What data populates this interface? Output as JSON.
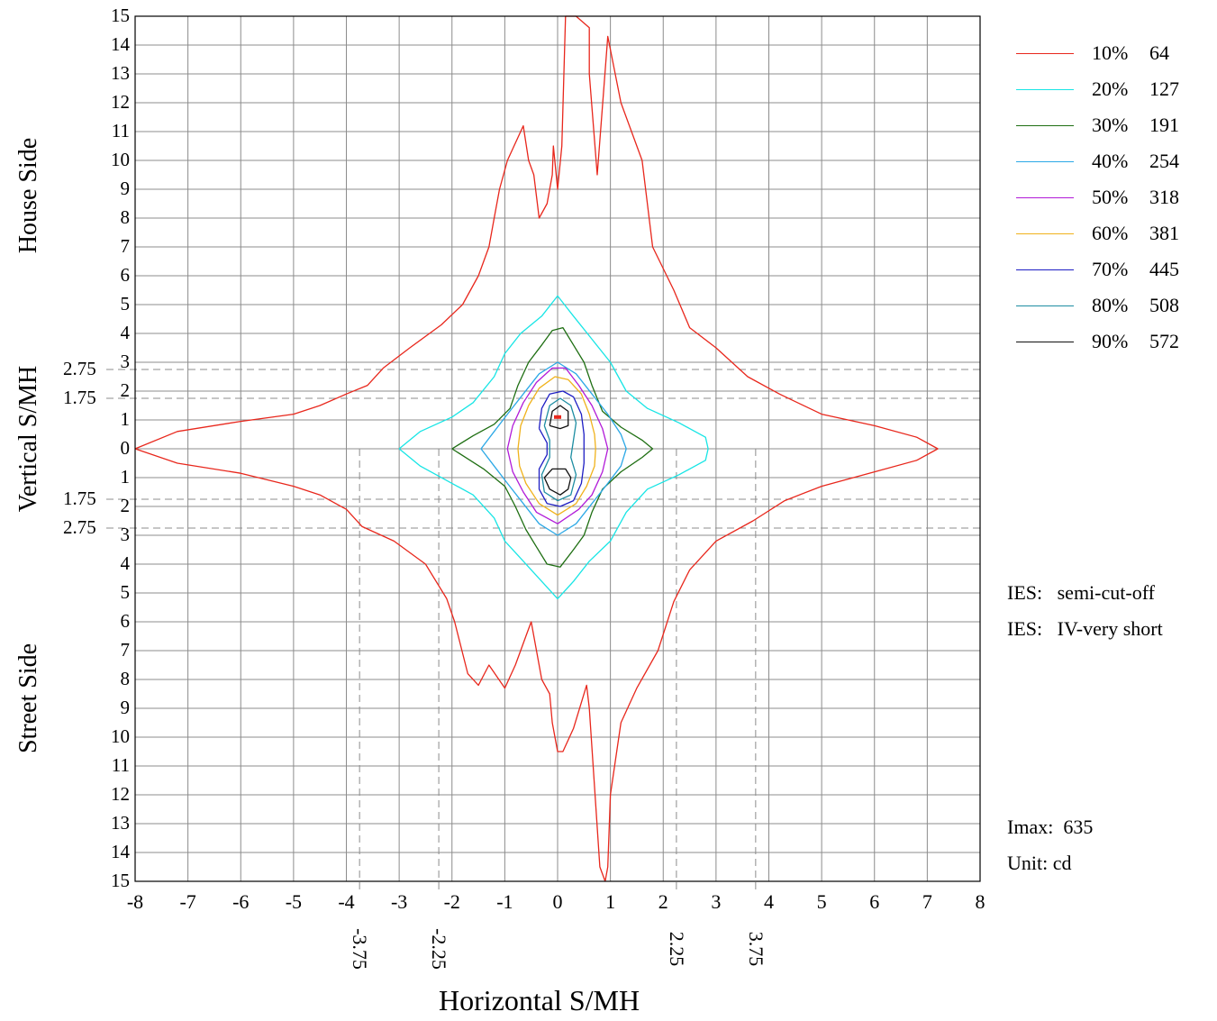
{
  "chart_data": {
    "type": "contour",
    "xlabel": "Horizontal S/MH",
    "ylabel": "Vertical S/MH",
    "side_labels": {
      "top": "House Side",
      "bottom": "Street Side"
    },
    "xlim": [
      -8,
      8
    ],
    "ylim": [
      -15,
      15
    ],
    "x_ticks": [
      "-8",
      "-7",
      "-6",
      "-5",
      "-4",
      "-3",
      "-2",
      "-1",
      "0",
      "1",
      "2",
      "3",
      "4",
      "5",
      "6",
      "7",
      "8"
    ],
    "y_ticks": [
      "15",
      "14",
      "13",
      "12",
      "11",
      "10",
      "9",
      "8",
      "7",
      "6",
      "5",
      "4",
      "3",
      "2",
      "1",
      "0",
      "1",
      "2",
      "3",
      "4",
      "5",
      "6",
      "7",
      "8",
      "9",
      "10",
      "11",
      "12",
      "13",
      "14",
      "15"
    ],
    "ref_lines": {
      "vertical": [
        {
          "x": -3.75,
          "label": "-3.75"
        },
        {
          "x": -2.25,
          "label": "-2.25"
        },
        {
          "x": 2.25,
          "label": "2.25"
        },
        {
          "x": 3.75,
          "label": "3.75"
        }
      ],
      "horizontal": [
        {
          "y": 2.75,
          "label": "2.75"
        },
        {
          "y": 1.75,
          "label": "1.75"
        },
        {
          "y": -1.75,
          "label": "1.75"
        },
        {
          "y": -2.75,
          "label": "2.75"
        }
      ]
    },
    "legend": [
      {
        "pct": "10%",
        "value": "64",
        "color": "#e8271c"
      },
      {
        "pct": "20%",
        "value": "127",
        "color": "#17e5e5"
      },
      {
        "pct": "30%",
        "value": "191",
        "color": "#1e6e12"
      },
      {
        "pct": "40%",
        "value": "254",
        "color": "#2ba8e6"
      },
      {
        "pct": "50%",
        "value": "318",
        "color": "#b11ad8"
      },
      {
        "pct": "60%",
        "value": "381",
        "color": "#f0b21b"
      },
      {
        "pct": "70%",
        "value": "445",
        "color": "#1e1ec4"
      },
      {
        "pct": "80%",
        "value": "508",
        "color": "#1d8da2"
      },
      {
        "pct": "90%",
        "value": "572",
        "color": "#111111"
      }
    ],
    "contours": [
      {
        "level": "10%",
        "points": [
          [
            -8.0,
            0
          ],
          [
            -7.2,
            0.6
          ],
          [
            -6.0,
            0.95
          ],
          [
            -5.0,
            1.2
          ],
          [
            -4.5,
            1.5
          ],
          [
            -4.0,
            1.9
          ],
          [
            -3.6,
            2.2
          ],
          [
            -3.3,
            2.8
          ],
          [
            -2.8,
            3.5
          ],
          [
            -2.2,
            4.3
          ],
          [
            -1.8,
            5.0
          ],
          [
            -1.5,
            6.0
          ],
          [
            -1.3,
            7.0
          ],
          [
            -1.2,
            8.0
          ],
          [
            -1.1,
            9.0
          ],
          [
            -0.95,
            10.0
          ],
          [
            -0.65,
            11.2
          ],
          [
            -0.55,
            10.0
          ],
          [
            -0.45,
            9.5
          ],
          [
            -0.35,
            8.0
          ],
          [
            -0.2,
            8.5
          ],
          [
            -0.1,
            9.5
          ],
          [
            -0.08,
            10.5
          ],
          [
            0.0,
            9.0
          ],
          [
            0.08,
            10.5
          ],
          [
            0.15,
            15.0
          ],
          [
            0.35,
            15.0
          ],
          [
            0.6,
            14.6
          ],
          [
            0.6,
            13.0
          ],
          [
            0.75,
            9.5
          ],
          [
            0.95,
            14.3
          ],
          [
            1.2,
            12.0
          ],
          [
            1.6,
            10.0
          ],
          [
            1.8,
            7.0
          ],
          [
            2.2,
            5.5
          ],
          [
            2.5,
            4.2
          ],
          [
            3.0,
            3.5
          ],
          [
            3.6,
            2.5
          ],
          [
            4.2,
            1.9
          ],
          [
            5.0,
            1.2
          ],
          [
            6.0,
            0.8
          ],
          [
            6.8,
            0.4
          ],
          [
            7.2,
            0.0
          ],
          [
            6.8,
            -0.4
          ],
          [
            6.0,
            -0.8
          ],
          [
            5.0,
            -1.3
          ],
          [
            4.3,
            -1.8
          ],
          [
            3.7,
            -2.5
          ],
          [
            3.0,
            -3.2
          ],
          [
            2.5,
            -4.2
          ],
          [
            2.2,
            -5.3
          ],
          [
            1.9,
            -7.0
          ],
          [
            1.5,
            -8.3
          ],
          [
            1.2,
            -9.5
          ],
          [
            1.0,
            -12.0
          ],
          [
            0.95,
            -14.5
          ],
          [
            0.9,
            -15.0
          ],
          [
            0.8,
            -14.5
          ],
          [
            0.6,
            -9.0
          ],
          [
            0.55,
            -8.2
          ],
          [
            0.3,
            -9.7
          ],
          [
            0.1,
            -10.5
          ],
          [
            0.0,
            -10.5
          ],
          [
            -0.1,
            -9.5
          ],
          [
            -0.15,
            -8.5
          ],
          [
            -0.3,
            -8.0
          ],
          [
            -0.5,
            -6.0
          ],
          [
            -0.6,
            -6.5
          ],
          [
            -0.8,
            -7.5
          ],
          [
            -1.0,
            -8.3
          ],
          [
            -1.3,
            -7.5
          ],
          [
            -1.5,
            -8.2
          ],
          [
            -1.7,
            -7.8
          ],
          [
            -1.95,
            -6.0
          ],
          [
            -2.1,
            -5.2
          ],
          [
            -2.5,
            -4.0
          ],
          [
            -3.1,
            -3.2
          ],
          [
            -3.7,
            -2.7
          ],
          [
            -4.0,
            -2.1
          ],
          [
            -4.5,
            -1.6
          ],
          [
            -5.0,
            -1.3
          ],
          [
            -6.0,
            -0.85
          ],
          [
            -7.2,
            -0.5
          ],
          [
            -8.0,
            0
          ]
        ]
      },
      {
        "level": "20%",
        "points": [
          [
            -3.0,
            0
          ],
          [
            -2.6,
            0.6
          ],
          [
            -2.0,
            1.1
          ],
          [
            -1.6,
            1.6
          ],
          [
            -1.2,
            2.5
          ],
          [
            -1.0,
            3.3
          ],
          [
            -0.7,
            4.0
          ],
          [
            -0.3,
            4.6
          ],
          [
            0.0,
            5.3
          ],
          [
            0.3,
            4.6
          ],
          [
            0.65,
            3.8
          ],
          [
            1.0,
            3.0
          ],
          [
            1.3,
            2.0
          ],
          [
            1.7,
            1.4
          ],
          [
            2.3,
            0.9
          ],
          [
            2.8,
            0.4
          ],
          [
            2.85,
            0
          ],
          [
            2.8,
            -0.4
          ],
          [
            2.3,
            -0.9
          ],
          [
            1.7,
            -1.4
          ],
          [
            1.3,
            -2.2
          ],
          [
            1.0,
            -3.2
          ],
          [
            0.6,
            -3.9
          ],
          [
            0.3,
            -4.6
          ],
          [
            0.0,
            -5.2
          ],
          [
            -0.3,
            -4.6
          ],
          [
            -0.7,
            -3.8
          ],
          [
            -1.0,
            -3.2
          ],
          [
            -1.2,
            -2.4
          ],
          [
            -1.6,
            -1.6
          ],
          [
            -2.0,
            -1.2
          ],
          [
            -2.6,
            -0.6
          ],
          [
            -3.0,
            0
          ]
        ]
      },
      {
        "level": "30%",
        "points": [
          [
            -2.0,
            0
          ],
          [
            -1.6,
            0.45
          ],
          [
            -1.2,
            0.85
          ],
          [
            -0.9,
            1.4
          ],
          [
            -0.75,
            2.2
          ],
          [
            -0.55,
            3.0
          ],
          [
            -0.3,
            3.6
          ],
          [
            -0.1,
            4.1
          ],
          [
            0.1,
            4.2
          ],
          [
            0.3,
            3.6
          ],
          [
            0.5,
            3.0
          ],
          [
            0.65,
            2.2
          ],
          [
            0.85,
            1.3
          ],
          [
            1.2,
            0.75
          ],
          [
            1.6,
            0.3
          ],
          [
            1.8,
            0
          ],
          [
            1.6,
            -0.3
          ],
          [
            1.2,
            -0.8
          ],
          [
            0.85,
            -1.4
          ],
          [
            0.65,
            -2.2
          ],
          [
            0.5,
            -3.0
          ],
          [
            0.3,
            -3.5
          ],
          [
            0.05,
            -4.1
          ],
          [
            -0.2,
            -4.0
          ],
          [
            -0.4,
            -3.4
          ],
          [
            -0.6,
            -2.8
          ],
          [
            -0.8,
            -2.0
          ],
          [
            -1.0,
            -1.3
          ],
          [
            -1.4,
            -0.7
          ],
          [
            -2.0,
            0
          ]
        ]
      },
      {
        "level": "40%",
        "points": [
          [
            -1.45,
            0
          ],
          [
            -1.2,
            0.6
          ],
          [
            -0.95,
            1.2
          ],
          [
            -0.65,
            1.9
          ],
          [
            -0.35,
            2.6
          ],
          [
            0.0,
            3.0
          ],
          [
            0.35,
            2.6
          ],
          [
            0.65,
            1.9
          ],
          [
            0.95,
            1.2
          ],
          [
            1.2,
            0.5
          ],
          [
            1.3,
            0
          ],
          [
            1.2,
            -0.6
          ],
          [
            0.95,
            -1.2
          ],
          [
            0.65,
            -1.9
          ],
          [
            0.35,
            -2.6
          ],
          [
            0.0,
            -3.0
          ],
          [
            -0.35,
            -2.6
          ],
          [
            -0.65,
            -1.9
          ],
          [
            -0.95,
            -1.2
          ],
          [
            -1.2,
            -0.6
          ],
          [
            -1.45,
            0
          ]
        ]
      },
      {
        "level": "50%",
        "points": [
          [
            -0.95,
            0
          ],
          [
            -0.85,
            0.8
          ],
          [
            -0.65,
            1.6
          ],
          [
            -0.4,
            2.3
          ],
          [
            -0.1,
            2.8
          ],
          [
            0.15,
            2.8
          ],
          [
            0.4,
            2.2
          ],
          [
            0.65,
            1.5
          ],
          [
            0.85,
            0.7
          ],
          [
            0.95,
            0
          ],
          [
            0.85,
            -0.8
          ],
          [
            0.65,
            -1.6
          ],
          [
            0.4,
            -2.1
          ],
          [
            0.0,
            -2.6
          ],
          [
            -0.4,
            -2.2
          ],
          [
            -0.65,
            -1.5
          ],
          [
            -0.85,
            -0.8
          ],
          [
            -0.95,
            0
          ]
        ]
      },
      {
        "level": "60%",
        "points": [
          [
            -0.75,
            0
          ],
          [
            -0.7,
            0.8
          ],
          [
            -0.55,
            1.5
          ],
          [
            -0.35,
            2.1
          ],
          [
            -0.05,
            2.5
          ],
          [
            0.2,
            2.4
          ],
          [
            0.45,
            1.9
          ],
          [
            0.6,
            1.2
          ],
          [
            0.7,
            0.5
          ],
          [
            0.72,
            0
          ],
          [
            0.7,
            -0.6
          ],
          [
            0.55,
            -1.3
          ],
          [
            0.35,
            -1.9
          ],
          [
            0.0,
            -2.3
          ],
          [
            -0.35,
            -1.9
          ],
          [
            -0.6,
            -1.2
          ],
          [
            -0.72,
            -0.6
          ],
          [
            -0.75,
            0
          ]
        ]
      },
      {
        "level": "70%",
        "points": [
          [
            -0.35,
            0.7
          ],
          [
            -0.3,
            1.4
          ],
          [
            -0.15,
            1.9
          ],
          [
            0.1,
            2.0
          ],
          [
            0.3,
            1.8
          ],
          [
            0.45,
            1.2
          ],
          [
            0.5,
            0.5
          ],
          [
            0.5,
            -0.5
          ],
          [
            0.45,
            -1.2
          ],
          [
            0.3,
            -1.8
          ],
          [
            0.05,
            -2.0
          ],
          [
            -0.2,
            -1.9
          ],
          [
            -0.35,
            -1.4
          ],
          [
            -0.35,
            -0.7
          ],
          [
            -0.2,
            -0.2
          ],
          [
            -0.2,
            0.2
          ],
          [
            -0.35,
            0.7
          ]
        ]
      },
      {
        "level": "80%",
        "points": [
          [
            -0.25,
            0.8
          ],
          [
            -0.15,
            1.5
          ],
          [
            0.05,
            1.75
          ],
          [
            0.25,
            1.5
          ],
          [
            0.35,
            0.9
          ],
          [
            0.3,
            0.3
          ],
          [
            0.25,
            -0.3
          ],
          [
            0.35,
            -0.9
          ],
          [
            0.25,
            -1.6
          ],
          [
            0.0,
            -1.8
          ],
          [
            -0.25,
            -1.5
          ],
          [
            -0.3,
            -0.9
          ],
          [
            -0.15,
            -0.3
          ],
          [
            -0.15,
            0.3
          ],
          [
            -0.25,
            0.8
          ]
        ]
      },
      {
        "level": "90%",
        "points": [
          [
            -0.15,
            0.8
          ],
          [
            -0.1,
            1.3
          ],
          [
            0.05,
            1.5
          ],
          [
            0.2,
            1.3
          ],
          [
            0.2,
            0.8
          ],
          [
            0.05,
            0.7
          ],
          [
            -0.15,
            0.8
          ]
        ]
      },
      {
        "level": "90%",
        "points": [
          [
            -0.25,
            -1.0
          ],
          [
            -0.15,
            -1.4
          ],
          [
            0.05,
            -1.6
          ],
          [
            0.2,
            -1.4
          ],
          [
            0.25,
            -1.0
          ],
          [
            0.15,
            -0.7
          ],
          [
            -0.1,
            -0.7
          ],
          [
            -0.25,
            -1.0
          ]
        ]
      }
    ],
    "imax_marker": {
      "x": 0.0,
      "y": 1.1,
      "color": "#e8271c"
    }
  },
  "info": {
    "ies1": "IES:   semi-cut-off",
    "ies2": "IES:   IV-very short",
    "imax": "Imax:  635",
    "unit": "Unit: cd"
  },
  "colors": {
    "grid": "#8c8c8c",
    "axis": "#000000",
    "ref": "#8c8c8c"
  }
}
